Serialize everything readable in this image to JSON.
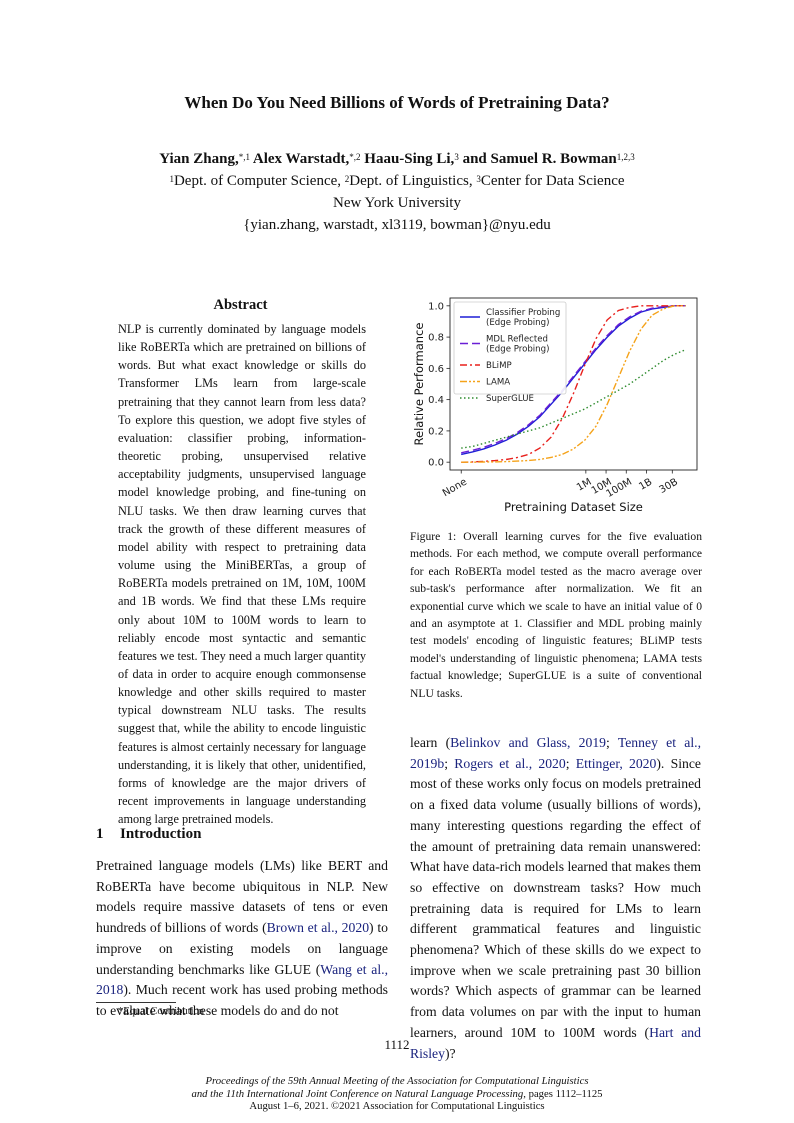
{
  "paper": {
    "title": "When Do You Need Billions of Words of Pretraining Data?",
    "authors": [
      {
        "name": "Yian Zhang,",
        "sup": "*,1"
      },
      {
        "name": "Alex Warstadt,",
        "sup": "*,2"
      },
      {
        "name": "Haau-Sing Li,",
        "sup": "3"
      },
      {
        "name": "and Samuel R. Bowman",
        "sup": "1,2,3"
      }
    ],
    "affiliations": [
      {
        "sup": "1",
        "text": "Dept. of Computer Science, "
      },
      {
        "sup": "2",
        "text": "Dept. of Linguistics, "
      },
      {
        "sup": "3",
        "text": "Center for Data Science"
      }
    ],
    "institution": "New York University",
    "emails": "{yian.zhang, warstadt, xl3119, bowman}@nyu.edu"
  },
  "abstract": {
    "heading": "Abstract",
    "text": "NLP is currently dominated by language models like RoBERTa which are pretrained on billions of words. But what exact knowledge or skills do Transformer LMs learn from large-scale pretraining that they cannot learn from less data? To explore this question, we adopt five styles of evaluation: classifier probing, information-theoretic probing, unsupervised relative acceptability judgments, unsupervised language model knowledge probing, and fine-tuning on NLU tasks. We then draw learning curves that track the growth of these different measures of model ability with respect to pretraining data volume using the MiniBERTas, a group of RoBERTa models pretrained on 1M, 10M, 100M and 1B words. We find that these LMs require only about 10M to 100M words to learn to reliably encode most syntactic and semantic features we test. They need a much larger quantity of data in order to acquire enough commonsense knowledge and other skills required to master typical downstream NLU tasks. The results suggest that, while the ability to encode linguistic features is almost certainly necessary for language understanding, it is likely that other, unidentified, forms of knowledge are the major drivers of recent improvements in language understanding among large pretrained models."
  },
  "intro": {
    "number": "1",
    "heading": "Introduction",
    "left_text": [
      {
        "t": "Pretrained language models (LMs) like BERT and RoBERTa have become ubiquitous in NLP. New models require massive datasets of tens or even hundreds of billions of words ("
      },
      {
        "c": "Brown et al., 2020"
      },
      {
        "t": ") to improve on existing models on language understanding benchmarks like GLUE ("
      },
      {
        "c": "Wang et al., 2018"
      },
      {
        "t": "). Much recent work has used probing methods to evaluate what these models do and do not"
      }
    ],
    "right_text": [
      {
        "t": "learn ("
      },
      {
        "c": "Belinkov and Glass, 2019"
      },
      {
        "t": "; "
      },
      {
        "c": "Tenney et al., 2019b"
      },
      {
        "t": "; "
      },
      {
        "c": "Rogers et al., 2020"
      },
      {
        "t": "; "
      },
      {
        "c": "Ettinger, 2020"
      },
      {
        "t": "). Since most of these works only focus on models pretrained on a fixed data volume (usually billions of words), many interesting questions regarding the effect of the amount of pretraining data remain unanswered: What have data-rich models learned that makes them so effective on downstream tasks? How much pretraining data is required for LMs to learn different grammatical features and linguistic phenomena? Which of these skills do we expect to improve when we scale pretraining past 30 billion words? Which aspects of grammar can be learned from data volumes on par with the input to human learners, around 10M to 100M words ("
      },
      {
        "c": "Hart and Risley"
      },
      {
        "t": ")?"
      }
    ]
  },
  "footnote": "*Equal Contribution",
  "caption": "Figure 1: Overall learning curves for the five evaluation methods. For each method, we compute overall performance for each RoBERTa model tested as the macro average over sub-task's performance after normalization. We fit an exponential curve which we scale to have an initial value of 0 and an asymptote at 1. Classifier and MDL probing mainly test models' encoding of linguistic features; BLiMP tests model's understanding of linguistic phenomena; LAMA tests factual knowledge; SuperGLUE is a suite of conventional NLU tasks.",
  "page_number": "1112",
  "proceedings": {
    "line1": "Proceedings of the 59th Annual Meeting of the Association for Computational Linguistics",
    "line2_it": "and the 11th International Joint Conference on Natural Language Processing",
    "line2_rest": ", pages 1112–1125",
    "line3": "August 1–6, 2021. ©2021 Association for Computational Linguistics"
  },
  "chart_data": {
    "type": "line",
    "xlabel": "Pretraining Dataset Size",
    "ylabel": "Relative Performance",
    "x_ticks": [
      "None",
      "1M",
      "10M",
      "100M",
      "1B",
      "30B"
    ],
    "y_ticks": [
      "0.0",
      "0.2",
      "0.4",
      "0.6",
      "0.8",
      "1.0"
    ],
    "ylim": [
      -0.05,
      1.05
    ],
    "legend_position": "top-left",
    "x": [
      0,
      0.5,
      1,
      1.5,
      2,
      2.5,
      3,
      3.5,
      4,
      4.5,
      5,
      5.5,
      6,
      6.5,
      7,
      7.5,
      8,
      8.5,
      9,
      9.5,
      10
    ],
    "series": [
      {
        "name": "Classifier Probing\n(Edge Probing)",
        "color": "#1f1fd6",
        "dash": "solid",
        "values": [
          0.05,
          0.066,
          0.085,
          0.11,
          0.14,
          0.18,
          0.23,
          0.29,
          0.37,
          0.45,
          0.54,
          0.63,
          0.72,
          0.8,
          0.87,
          0.92,
          0.96,
          0.98,
          0.99,
          1.0,
          1.0
        ]
      },
      {
        "name": "MDL Reflected\n(Edge Probing)",
        "color": "#6a1fd6",
        "dash": "8,4",
        "values": [
          0.06,
          0.076,
          0.095,
          0.12,
          0.15,
          0.19,
          0.24,
          0.3,
          0.38,
          0.46,
          0.55,
          0.64,
          0.73,
          0.81,
          0.88,
          0.93,
          0.965,
          0.985,
          0.995,
          1.0,
          1.0
        ]
      },
      {
        "name": "BLiMP",
        "color": "#e8201c",
        "dash": "7,3,2,3",
        "values": [
          0.0,
          0.002,
          0.005,
          0.01,
          0.017,
          0.03,
          0.05,
          0.09,
          0.16,
          0.28,
          0.44,
          0.62,
          0.79,
          0.91,
          0.97,
          0.99,
          1.0,
          1.0,
          1.0,
          1.0,
          1.0
        ]
      },
      {
        "name": "LAMA",
        "color": "#f5a31a",
        "dash": "7,2,2,2,2,2",
        "values": [
          0.0,
          0.0,
          0.001,
          0.002,
          0.004,
          0.007,
          0.011,
          0.018,
          0.03,
          0.05,
          0.085,
          0.14,
          0.23,
          0.37,
          0.54,
          0.71,
          0.85,
          0.94,
          0.98,
          1.0,
          1.0
        ]
      },
      {
        "name": "SuperGLUE",
        "color": "#2e8b2e",
        "dash": "1.5,2.5",
        "values": [
          0.09,
          0.1,
          0.12,
          0.14,
          0.16,
          0.18,
          0.2,
          0.22,
          0.25,
          0.28,
          0.31,
          0.34,
          0.38,
          0.42,
          0.46,
          0.5,
          0.55,
          0.6,
          0.65,
          0.69,
          0.72
        ]
      }
    ]
  }
}
